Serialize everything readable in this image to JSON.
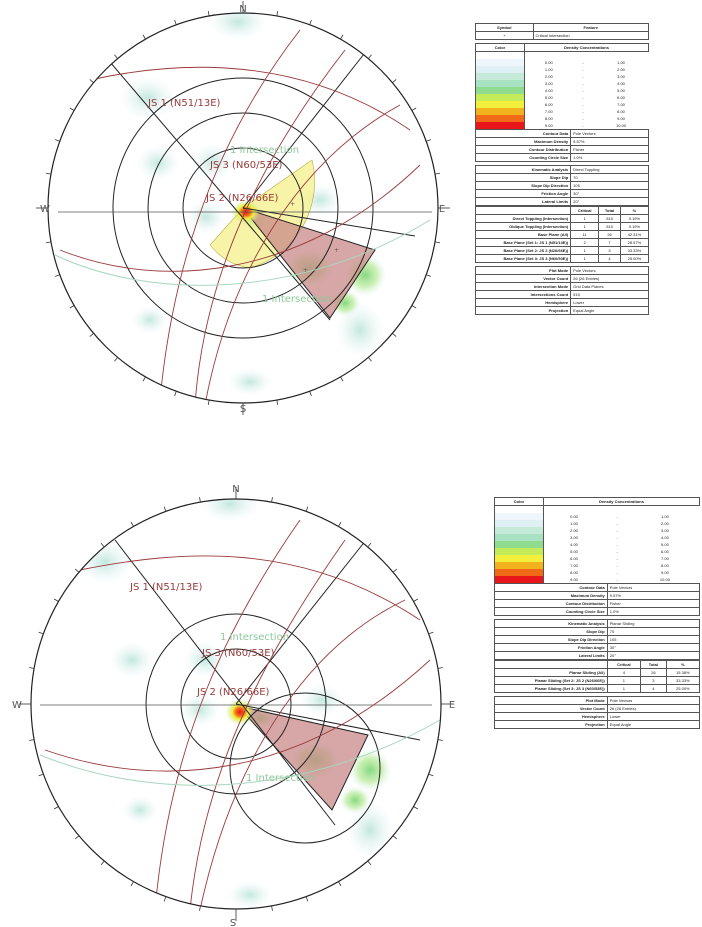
{
  "colors": {
    "density": [
      "#ffffff",
      "#eef6fb",
      "#dff0f4",
      "#c6ead9",
      "#a8e2c3",
      "#8fdc8f",
      "#c4ec5a",
      "#f2f03c",
      "#f2b21e",
      "#f06a18",
      "#e8161a"
    ],
    "joint_plane": "#9a3a3a",
    "intersection_label": "#8cc89a",
    "wedge_fill": "#c98a8a",
    "cone_fill": "#f4f08a"
  },
  "top_net": {
    "compass": {
      "n": "N",
      "e": "E",
      "s": "S",
      "w": "W"
    },
    "planes": [
      {
        "id": "js1",
        "label": "JS 1 (N51/13E)"
      },
      {
        "id": "js2",
        "label": "JS 2 (N26/66E)"
      },
      {
        "id": "js3",
        "label": "JS 3 (N60/53E)"
      }
    ],
    "intersections": [
      {
        "label": "1 Intersection"
      },
      {
        "label": "1 Intersection"
      }
    ],
    "blobs": []
  },
  "bottom_net": {
    "compass": {
      "n": "N",
      "e": "E",
      "s": "S",
      "w": "W"
    },
    "planes": [
      {
        "id": "js1",
        "label": "JS 1 (N51/13E)"
      },
      {
        "id": "js2",
        "label": "JS 2 (N26/66E)"
      },
      {
        "id": "js3",
        "label": "JS 3 (N60/53E)"
      }
    ],
    "intersections": [
      {
        "label": "1 Intersection"
      },
      {
        "label": "1 Intersection"
      }
    ]
  },
  "top_table": {
    "symbol_header": "Symbol",
    "feature_header": "Feature",
    "symbol_row": {
      "symbol": "+",
      "feature": "Critical Intersection"
    },
    "color_header": "Color",
    "density_header": "Density Concentrations",
    "density_rows": [
      [
        "0.00",
        "-",
        "1.00"
      ],
      [
        "1.00",
        "-",
        "2.00"
      ],
      [
        "2.00",
        "-",
        "3.00"
      ],
      [
        "3.00",
        "-",
        "4.00"
      ],
      [
        "4.00",
        "-",
        "5.00"
      ],
      [
        "5.00",
        "-",
        "6.00"
      ],
      [
        "6.00",
        "-",
        "7.00"
      ],
      [
        "7.00",
        "-",
        "8.00"
      ],
      [
        "8.00",
        "-",
        "9.00"
      ],
      [
        "9.00",
        "-",
        "10.00"
      ]
    ],
    "contour_info": [
      {
        "label": "Contour Data",
        "value": "Pole Vectors"
      },
      {
        "label": "Maximum Density",
        "value": "9.57%"
      },
      {
        "label": "Contour Distribution",
        "value": "Fisher"
      },
      {
        "label": "Counting Circle Size",
        "value": "1.0%"
      }
    ],
    "kinematic": [
      {
        "label": "Kinematic Analysis",
        "value": "Direct Toppling"
      },
      {
        "label": "Slope Dip",
        "value": "70"
      },
      {
        "label": "Slope Dip Direction",
        "value": "105"
      },
      {
        "label": "Friction Angle",
        "value": "30°"
      },
      {
        "label": "Lateral Limits",
        "value": "20°"
      }
    ],
    "crit_headers": [
      "",
      "Critical",
      "Total",
      "%"
    ],
    "crit_rows": [
      [
        "Direct Toppling (Intersection)",
        "1",
        "515",
        "0.19%"
      ],
      [
        "Oblique Toppling (Intersection)",
        "1",
        "515",
        "0.19%"
      ],
      [
        "Base Plane (All)",
        "11",
        "26",
        "42.31%"
      ],
      [
        "Base Plane (Set 1: JS 1 (N51/13E))",
        "2",
        "7",
        "28.57%"
      ],
      [
        "Base Plane (Set 2: JS 2 (N26/66E))",
        "1",
        "3",
        "33.33%"
      ],
      [
        "Base Plane (Set 3: JS 3 (N60/53E))",
        "1",
        "4",
        "25.00%"
      ]
    ],
    "plot_info": [
      {
        "label": "Plot Mode",
        "value": "Pole Vectors"
      },
      {
        "label": "Vector Count",
        "value": "26 (26 Entries)"
      },
      {
        "label": "Intersection Mode",
        "value": "Grid Data Planes"
      },
      {
        "label": "Intersections Count",
        "value": "515"
      },
      {
        "label": "Hemisphere",
        "value": "Lower"
      },
      {
        "label": "Projection",
        "value": "Equal Angle"
      }
    ]
  },
  "bottom_table": {
    "color_header": "Color",
    "density_header": "Density Concentrations",
    "density_rows": [
      [
        "0.00",
        "-",
        "1.00"
      ],
      [
        "1.00",
        "-",
        "2.00"
      ],
      [
        "2.00",
        "-",
        "3.00"
      ],
      [
        "3.00",
        "-",
        "4.00"
      ],
      [
        "4.00",
        "-",
        "5.00"
      ],
      [
        "5.00",
        "-",
        "6.00"
      ],
      [
        "6.00",
        "-",
        "7.00"
      ],
      [
        "7.00",
        "-",
        "8.00"
      ],
      [
        "8.00",
        "-",
        "9.00"
      ],
      [
        "9.00",
        "-",
        "10.00"
      ]
    ],
    "contour_info": [
      {
        "label": "Contour Data",
        "value": "Pole Vectors"
      },
      {
        "label": "Maximum Density",
        "value": "9.57%"
      },
      {
        "label": "Contour Distribution",
        "value": "Fisher"
      },
      {
        "label": "Counting Circle Size",
        "value": "1.0%"
      }
    ],
    "kinematic": [
      {
        "label": "Kinematic Analysis",
        "value": "Planar Sliding"
      },
      {
        "label": "Slope Dip",
        "value": "70"
      },
      {
        "label": "Slope Dip Direction",
        "value": "105"
      },
      {
        "label": "Friction Angle",
        "value": "30°"
      },
      {
        "label": "Lateral Limits",
        "value": "20°"
      }
    ],
    "crit_headers": [
      "",
      "Critical",
      "Total",
      "%"
    ],
    "crit_rows": [
      [
        "Planar Sliding (All)",
        "4",
        "26",
        "15.38%"
      ],
      [
        "Planar Sliding (Set 2: JS 2 (N26/66E))",
        "1",
        "3",
        "33.33%"
      ],
      [
        "Planar Sliding (Set 3: JS 3 (N60/53E))",
        "1",
        "4",
        "25.00%"
      ]
    ],
    "plot_info": [
      {
        "label": "Plot Mode",
        "value": "Pole Vectors"
      },
      {
        "label": "Vector Count",
        "value": "26 (26 Entries)"
      },
      {
        "label": "Hemisphere",
        "value": "Lower"
      },
      {
        "label": "Projection",
        "value": "Equal Angle"
      }
    ]
  }
}
